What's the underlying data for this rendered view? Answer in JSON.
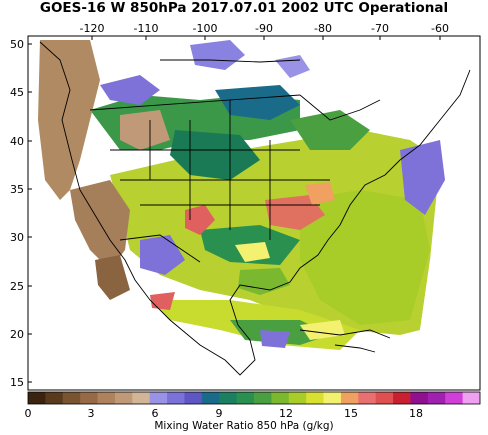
{
  "title": "GOES-16 W 850hPa 2017.07.01 2002 UTC Operational",
  "longitude_ticks": [
    "-120",
    "-110",
    "-100",
    "-90",
    "-80",
    "-70",
    "-60"
  ],
  "latitude_ticks": [
    "50",
    "45",
    "40",
    "35",
    "30",
    "25",
    "20",
    "15"
  ],
  "colorbar": {
    "label": "Mixing Water Ratio 850 hPa (g/kg)",
    "tick_labels": [
      "0",
      "3",
      "6",
      "9",
      "12",
      "15",
      "18"
    ],
    "colors": [
      "#3a2410",
      "#5a3a1c",
      "#7a5430",
      "#966a46",
      "#ad825c",
      "#c09a78",
      "#d2b496",
      "#9a92e6",
      "#7a72d8",
      "#5e56c4",
      "#1a6a8a",
      "#1a8060",
      "#2a9050",
      "#4aa040",
      "#7ab830",
      "#a8cc28",
      "#d8e030",
      "#f4f070",
      "#f0a060",
      "#e87070",
      "#e05050",
      "#c82030",
      "#901090",
      "#a020b0",
      "#d040d8",
      "#f0a0f0"
    ]
  },
  "colors": {
    "land_outline": "#000000",
    "dry_brown": "#a57e5a",
    "low_purple": "#7e72d8",
    "mid_green": "#2a9050",
    "high_yellow": "#d8e030",
    "very_high_red": "#e06060"
  }
}
